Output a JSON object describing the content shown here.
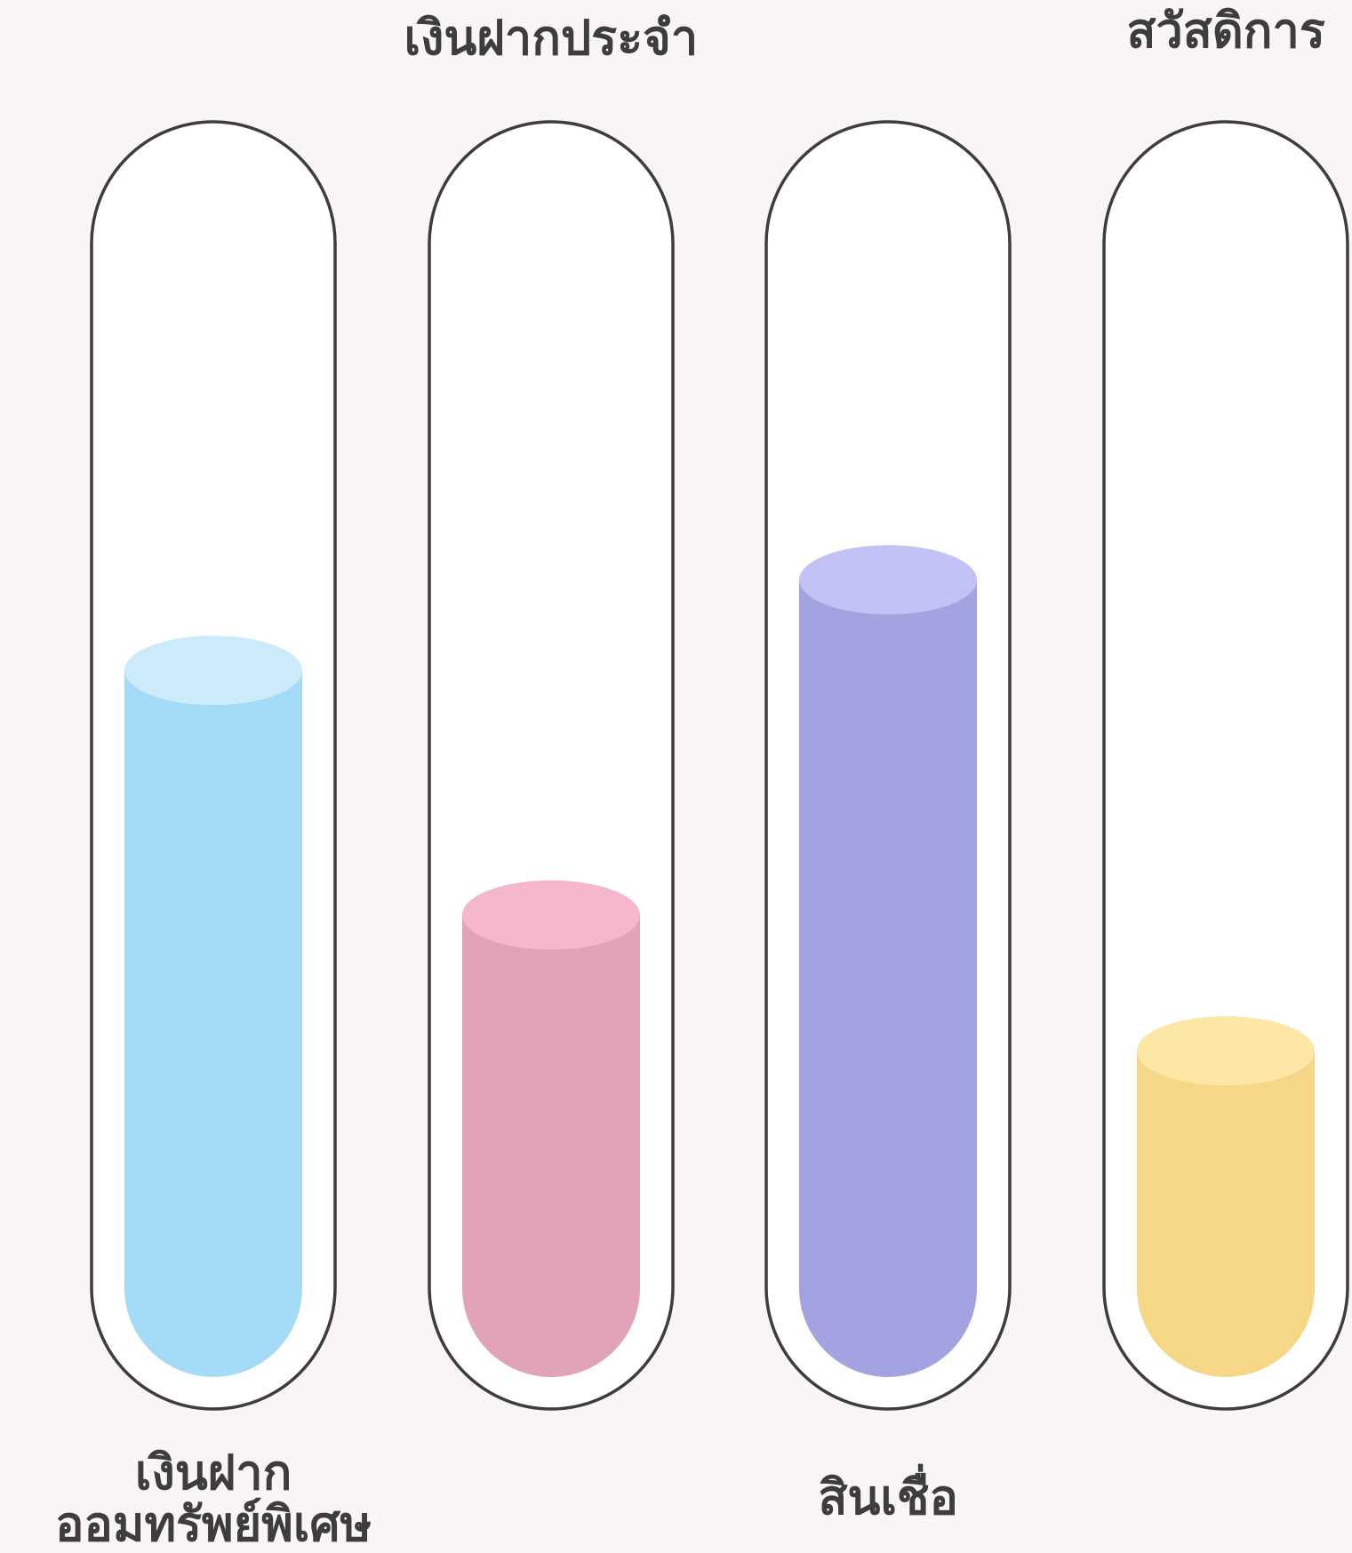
{
  "chart_data": {
    "type": "bar",
    "categories": [
      "เงินฝากออมทรัพย์พิเศษ",
      "เงินฝากประจำ",
      "สินเชื่อ",
      "สวัสดิการ"
    ],
    "category_labels": [
      [
        "เงินฝาก",
        "ออมทรัพย์พิเศษ"
      ],
      [
        "เงินฝากประจำ"
      ],
      [
        "สินเชื่อ"
      ],
      [
        "สวัสดิการ"
      ]
    ],
    "label_positions": [
      "bottom",
      "top",
      "bottom",
      "top"
    ],
    "values": [
      78,
      51,
      88,
      36
    ],
    "ylim": [
      0,
      100
    ],
    "title": "",
    "xlabel": "",
    "ylabel": "",
    "grid": false,
    "legend": "none",
    "colors": [
      {
        "body": "#a4dbf6",
        "top": "#cbebfb"
      },
      {
        "body": "#e1a4b7",
        "top": "#f5b8cb"
      },
      {
        "body": "#a4a3e1",
        "top": "#c3c2f5"
      },
      {
        "body": "#f6d787",
        "top": "#fde7a6"
      }
    ],
    "tube_fill": "#ffffff",
    "tube_stroke": "#3d3d3d",
    "text_color": "#3d3d3d",
    "background": "#f8f5f4"
  }
}
